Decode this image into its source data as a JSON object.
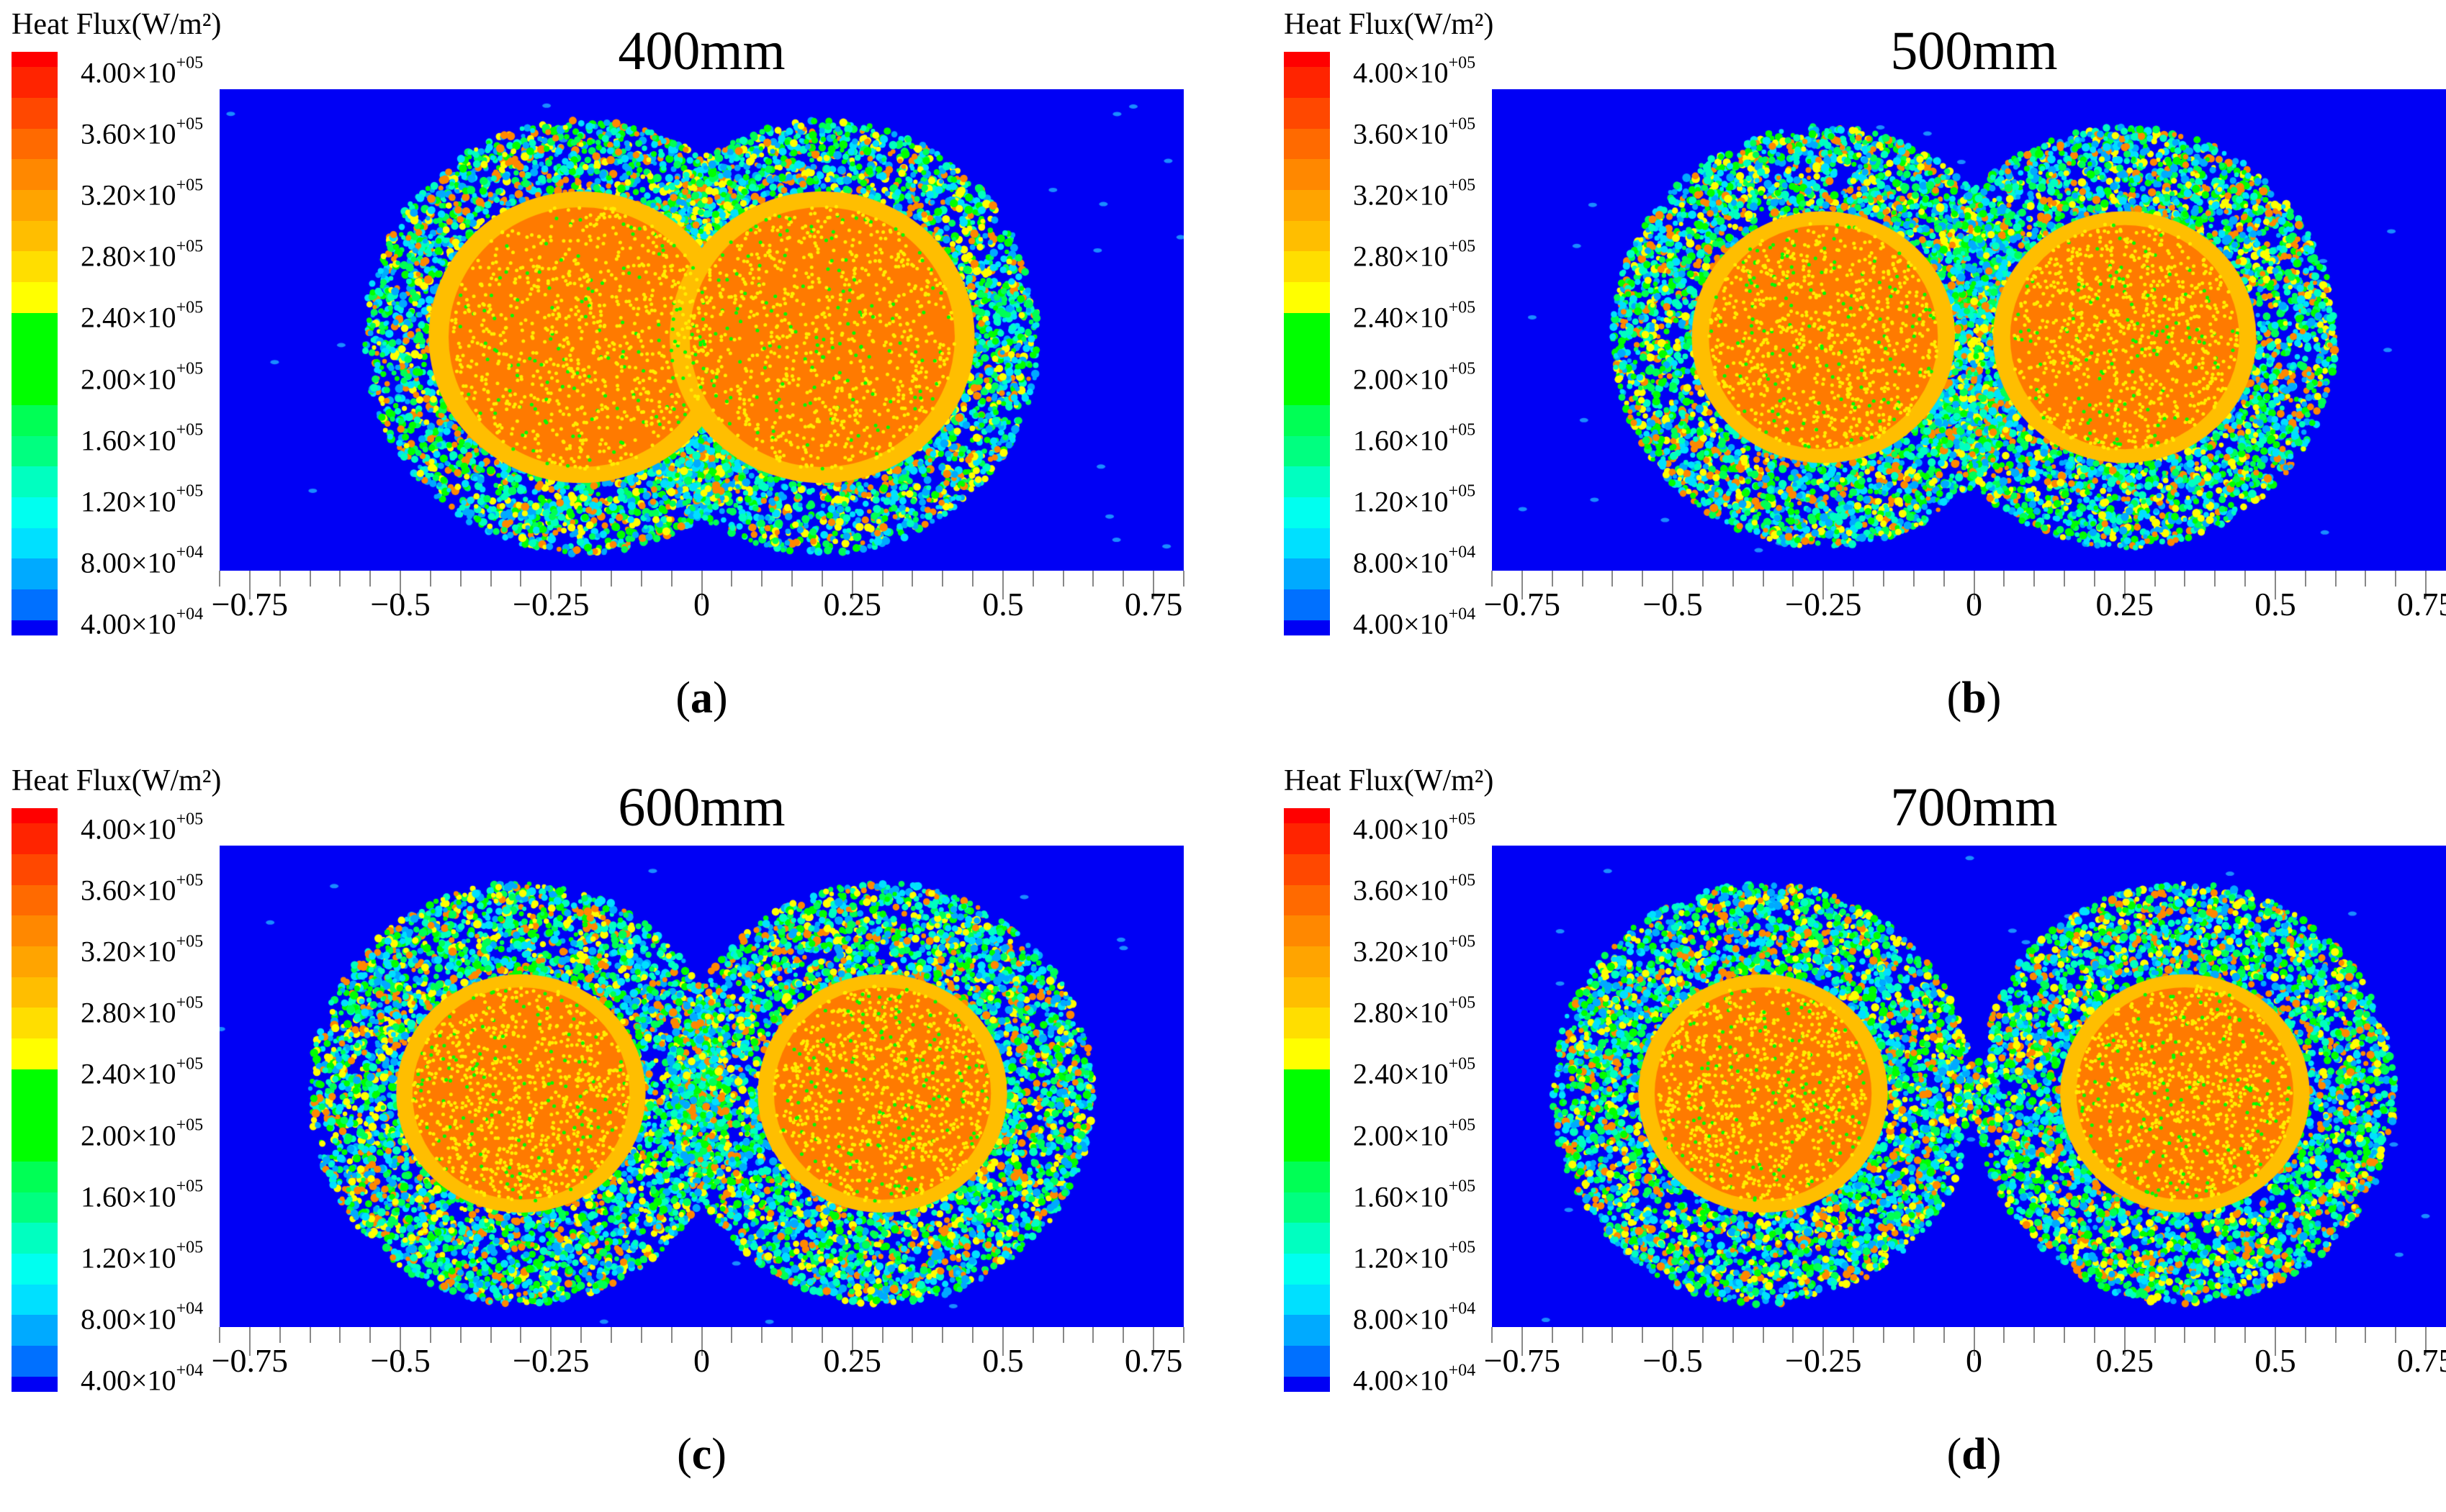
{
  "chart_data": [
    {
      "type": "heatmap",
      "panel": "a",
      "title": "400mm",
      "caption_letter": "a",
      "centers_x": [
        -0.2,
        0.2
      ],
      "outer_radius": 0.36,
      "core_radius": 0.22
    },
    {
      "type": "heatmap",
      "panel": "b",
      "title": "500mm",
      "caption_letter": "b",
      "centers_x": [
        -0.25,
        0.25
      ],
      "outer_radius": 0.35,
      "core_radius": 0.19
    },
    {
      "type": "heatmap",
      "panel": "c",
      "title": "600mm",
      "caption_letter": "c",
      "centers_x": [
        -0.3,
        0.3
      ],
      "outer_radius": 0.35,
      "core_radius": 0.18
    },
    {
      "type": "heatmap",
      "panel": "d",
      "title": "700mm",
      "caption_letter": "d",
      "centers_x": [
        -0.35,
        0.35
      ],
      "outer_radius": 0.35,
      "core_radius": 0.18
    }
  ],
  "colorbar": {
    "title": "Heat Flux(W/m²)",
    "labels": [
      {
        "m": "4.00×10",
        "e": "+05"
      },
      {
        "m": "3.60×10",
        "e": "+05"
      },
      {
        "m": "3.20×10",
        "e": "+05"
      },
      {
        "m": "2.80×10",
        "e": "+05"
      },
      {
        "m": "2.40×10",
        "e": "+05"
      },
      {
        "m": "2.00×10",
        "e": "+05"
      },
      {
        "m": "1.60×10",
        "e": "+05"
      },
      {
        "m": "1.20×10",
        "e": "+05"
      },
      {
        "m": "8.00×10",
        "e": "+04"
      },
      {
        "m": "4.00×10",
        "e": "+04"
      }
    ],
    "range": [
      40000,
      400000
    ],
    "colors": [
      "#ff0000",
      "#ff2400",
      "#ff4800",
      "#ff6a00",
      "#ff8800",
      "#ffa400",
      "#ffbe00",
      "#ffde00",
      "#ffff00",
      "#00ff00",
      "#00ff00",
      "#00ff00",
      "#00ff55",
      "#00ff80",
      "#00ffc0",
      "#00fff0",
      "#00e0ff",
      "#00aaff",
      "#0070ff",
      "#0000f5"
    ]
  },
  "x_axis": {
    "range": [
      -0.8,
      0.8
    ],
    "ticks": [
      "−0.75",
      "−0.5",
      "−0.25",
      "0",
      "0.25",
      "0.5",
      "0.75"
    ],
    "tick_values": [
      -0.75,
      -0.5,
      -0.25,
      0,
      0.25,
      0.5,
      0.75
    ]
  },
  "background_color": "#0000f5"
}
